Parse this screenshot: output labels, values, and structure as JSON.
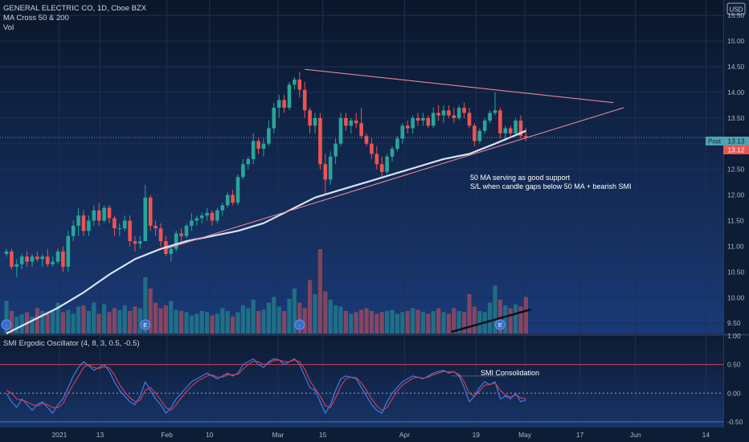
{
  "header": {
    "symbol_line": "GENERAL ELECTRIC CO, 1D, Cboe BZX",
    "indicator_ma": "MA Cross 50 & 200",
    "indicator_vol": "Vol",
    "currency": "USD"
  },
  "price_axis": {
    "ticks": [
      "15.50",
      "15.00",
      "14.50",
      "14.00",
      "13.50",
      "13.00",
      "12.50",
      "12.00",
      "11.50",
      "11.00",
      "10.50",
      "10.00",
      "9.50"
    ],
    "post_label": "Post",
    "post_value": "13.13",
    "last_value": "13.12"
  },
  "osc_axis": {
    "ticks": [
      "1.00",
      "0.50",
      "0.00",
      "-0.50"
    ]
  },
  "time_axis": {
    "labels": [
      "2021",
      "13",
      "Feb",
      "10",
      "Mar",
      "15",
      "Apr",
      "19",
      "May",
      "17",
      "Jun",
      "14"
    ]
  },
  "annotations": {
    "note_line1": "50 MA serving as good support",
    "note_line2": "S/L when candle gaps below 50 MA + bearish SMI",
    "smi_note": "SMI Consolidation"
  },
  "oscillator": {
    "title": "SMI Ergodic Oscillator (4, 8, 3, 0.5, -0.5)"
  },
  "event_markers": [
    "E",
    "E"
  ],
  "colors": {
    "background": "#0e1d36",
    "up": "#26a69a",
    "down": "#ef5350",
    "ma": "#d6e4ef",
    "trendline": "#e3879a",
    "smi_blue": "#3d7ee8",
    "smi_red": "#d23b4f",
    "overbought_line": "#c8434f",
    "oversold_line": "#2e86b8"
  },
  "chart_data": [
    {
      "type": "candlestick",
      "title": "GENERAL ELECTRIC CO, 1D, Cboe BZX",
      "ylim": [
        9.3,
        15.8
      ],
      "last_price": 13.12,
      "post_price": 13.13,
      "candles": [
        [
          10.85,
          10.95,
          10.8,
          10.9
        ],
        [
          10.9,
          10.95,
          10.55,
          10.6
        ],
        [
          10.6,
          10.75,
          10.4,
          10.65
        ],
        [
          10.65,
          10.85,
          10.55,
          10.8
        ],
        [
          10.8,
          10.9,
          10.6,
          10.7
        ],
        [
          10.7,
          10.85,
          10.6,
          10.8
        ],
        [
          10.8,
          10.9,
          10.7,
          10.75
        ],
        [
          10.75,
          10.85,
          10.6,
          10.8
        ],
        [
          10.8,
          10.95,
          10.6,
          10.65
        ],
        [
          10.65,
          10.8,
          10.6,
          10.7
        ],
        [
          10.7,
          10.95,
          10.65,
          10.9
        ],
        [
          10.9,
          11.0,
          10.5,
          10.6
        ],
        [
          10.6,
          11.3,
          10.5,
          11.2
        ],
        [
          11.2,
          11.5,
          11.1,
          11.4
        ],
        [
          11.4,
          11.75,
          11.2,
          11.6
        ],
        [
          11.6,
          11.7,
          11.2,
          11.3
        ],
        [
          11.3,
          11.6,
          11.2,
          11.5
        ],
        [
          11.5,
          11.8,
          11.4,
          11.7
        ],
        [
          11.7,
          11.85,
          11.4,
          11.5
        ],
        [
          11.5,
          11.8,
          11.45,
          11.75
        ],
        [
          11.75,
          11.8,
          11.45,
          11.55
        ],
        [
          11.55,
          11.6,
          11.2,
          11.35
        ],
        [
          11.35,
          11.45,
          11.2,
          11.35
        ],
        [
          11.35,
          11.6,
          11.3,
          11.5
        ],
        [
          11.5,
          11.6,
          11.0,
          11.1
        ],
        [
          11.1,
          11.2,
          10.9,
          11.05
        ],
        [
          11.05,
          11.2,
          10.95,
          11.1
        ],
        [
          11.1,
          12.2,
          11.1,
          11.95
        ],
        [
          11.95,
          12.0,
          11.3,
          11.4
        ],
        [
          11.4,
          11.5,
          11.2,
          11.35
        ],
        [
          11.35,
          11.45,
          11.0,
          11.1
        ],
        [
          11.1,
          11.2,
          10.8,
          10.85
        ],
        [
          10.85,
          11.0,
          10.7,
          10.95
        ],
        [
          10.95,
          11.3,
          10.9,
          11.25
        ],
        [
          11.25,
          11.35,
          11.1,
          11.2
        ],
        [
          11.2,
          11.45,
          11.15,
          11.4
        ],
        [
          11.4,
          11.65,
          11.3,
          11.5
        ],
        [
          11.5,
          11.6,
          11.4,
          11.55
        ],
        [
          11.55,
          11.65,
          11.45,
          11.6
        ],
        [
          11.6,
          11.75,
          11.5,
          11.65
        ],
        [
          11.65,
          11.7,
          11.4,
          11.5
        ],
        [
          11.5,
          11.75,
          11.45,
          11.7
        ],
        [
          11.7,
          11.85,
          11.6,
          11.8
        ],
        [
          11.8,
          12.05,
          11.75,
          12.0
        ],
        [
          12.0,
          12.1,
          11.8,
          11.85
        ],
        [
          11.85,
          12.4,
          11.8,
          12.35
        ],
        [
          12.35,
          12.7,
          12.3,
          12.6
        ],
        [
          12.6,
          12.75,
          12.5,
          12.7
        ],
        [
          12.7,
          13.2,
          12.6,
          13.05
        ],
        [
          13.05,
          13.1,
          12.8,
          12.9
        ],
        [
          12.9,
          13.1,
          12.75,
          13.0
        ],
        [
          13.0,
          13.45,
          12.95,
          13.3
        ],
        [
          13.3,
          13.8,
          13.2,
          13.7
        ],
        [
          13.7,
          13.95,
          13.5,
          13.85
        ],
        [
          13.85,
          13.95,
          13.6,
          13.7
        ],
        [
          13.7,
          14.2,
          13.65,
          14.15
        ],
        [
          14.15,
          14.3,
          14.05,
          14.25
        ],
        [
          14.25,
          14.4,
          13.9,
          14.05
        ],
        [
          14.05,
          14.2,
          13.5,
          13.65
        ],
        [
          13.65,
          13.7,
          13.2,
          13.35
        ],
        [
          13.35,
          13.6,
          13.2,
          13.5
        ],
        [
          13.5,
          13.6,
          12.5,
          12.6
        ],
        [
          12.6,
          12.8,
          12.0,
          12.3
        ],
        [
          12.3,
          12.85,
          12.2,
          12.75
        ],
        [
          12.75,
          13.1,
          12.6,
          13.0
        ],
        [
          13.0,
          13.6,
          12.95,
          13.5
        ],
        [
          13.5,
          13.6,
          13.25,
          13.35
        ],
        [
          13.35,
          13.5,
          13.2,
          13.45
        ],
        [
          13.45,
          13.6,
          13.3,
          13.4
        ],
        [
          13.4,
          13.7,
          13.1,
          13.15
        ],
        [
          13.15,
          13.2,
          12.95,
          13.0
        ],
        [
          13.0,
          13.1,
          12.7,
          12.8
        ],
        [
          12.8,
          12.95,
          12.5,
          12.6
        ],
        [
          12.6,
          12.75,
          12.35,
          12.45
        ],
        [
          12.45,
          12.8,
          12.4,
          12.75
        ],
        [
          12.75,
          12.95,
          12.65,
          12.9
        ],
        [
          12.9,
          13.15,
          12.85,
          13.1
        ],
        [
          13.1,
          13.4,
          13.0,
          13.35
        ],
        [
          13.35,
          13.45,
          13.2,
          13.3
        ],
        [
          13.3,
          13.55,
          13.2,
          13.5
        ],
        [
          13.5,
          13.6,
          13.35,
          13.45
        ],
        [
          13.45,
          13.6,
          13.35,
          13.5
        ],
        [
          13.5,
          13.55,
          13.3,
          13.35
        ],
        [
          13.35,
          13.7,
          13.3,
          13.6
        ],
        [
          13.6,
          13.75,
          13.45,
          13.55
        ],
        [
          13.55,
          13.75,
          13.4,
          13.65
        ],
        [
          13.65,
          13.75,
          13.5,
          13.55
        ],
        [
          13.55,
          13.7,
          13.4,
          13.5
        ],
        [
          13.5,
          13.75,
          13.45,
          13.7
        ],
        [
          13.7,
          13.8,
          13.5,
          13.6
        ],
        [
          13.6,
          13.7,
          13.3,
          13.35
        ],
        [
          13.35,
          13.4,
          12.95,
          13.05
        ],
        [
          13.05,
          13.3,
          13.0,
          13.25
        ],
        [
          13.25,
          13.5,
          13.2,
          13.45
        ],
        [
          13.45,
          13.65,
          13.4,
          13.6
        ],
        [
          13.6,
          14.0,
          13.55,
          13.65
        ],
        [
          13.65,
          13.7,
          13.1,
          13.2
        ],
        [
          13.2,
          13.35,
          13.05,
          13.3
        ],
        [
          13.3,
          13.35,
          13.15,
          13.2
        ],
        [
          13.2,
          13.5,
          13.15,
          13.45
        ],
        [
          13.45,
          13.55,
          13.1,
          13.15
        ],
        [
          13.15,
          13.3,
          13.05,
          13.12
        ]
      ],
      "volume": [
        58,
        40,
        30,
        34,
        38,
        30,
        45,
        40,
        35,
        40,
        55,
        38,
        42,
        35,
        48,
        50,
        40,
        55,
        35,
        52,
        38,
        45,
        42,
        50,
        40,
        48,
        45,
        100,
        80,
        55,
        45,
        50,
        58,
        42,
        40,
        38,
        32,
        35,
        40,
        38,
        32,
        35,
        45,
        40,
        30,
        38,
        50,
        45,
        60,
        40,
        42,
        55,
        65,
        48,
        40,
        62,
        80,
        55,
        45,
        95,
        70,
        150,
        75,
        60,
        50,
        48,
        40,
        35,
        38,
        42,
        45,
        40,
        35,
        38,
        40,
        42,
        35,
        38,
        40,
        45,
        42,
        38,
        35,
        40,
        45,
        38,
        35,
        45,
        40,
        38,
        70,
        48,
        40,
        38,
        55,
        85,
        60,
        50,
        45,
        52,
        48,
        65
      ],
      "ma50": [
        [
          0,
          9.3
        ],
        [
          5,
          9.55
        ],
        [
          10,
          9.8
        ],
        [
          15,
          10.1
        ],
        [
          20,
          10.45
        ],
        [
          25,
          10.75
        ],
        [
          30,
          10.95
        ],
        [
          35,
          11.1
        ],
        [
          40,
          11.2
        ],
        [
          45,
          11.3
        ],
        [
          50,
          11.45
        ],
        [
          55,
          11.7
        ],
        [
          60,
          11.95
        ],
        [
          65,
          12.1
        ],
        [
          70,
          12.25
        ],
        [
          75,
          12.4
        ],
        [
          80,
          12.55
        ],
        [
          85,
          12.7
        ],
        [
          90,
          12.8
        ],
        [
          95,
          13.0
        ],
        [
          101,
          13.25
        ]
      ],
      "trendlines": {
        "upper": [
          [
            58,
            14.45
          ],
          [
            118,
            13.8
          ]
        ],
        "lower": [
          [
            31,
            10.95
          ],
          [
            120,
            13.7
          ]
        ]
      },
      "annotations": [
        "50 MA serving as good support",
        "S/L when candle gaps below 50 MA + bearish SMI"
      ]
    },
    {
      "type": "line",
      "title": "SMI Ergodic Oscillator (4, 8, 3, 0.5, -0.5)",
      "ylim": [
        -0.6,
        1.0
      ],
      "levels": [
        0.5,
        0.0,
        -0.5
      ],
      "series": [
        {
          "values": [
            0.0,
            -0.15,
            -0.25,
            -0.1,
            -0.2,
            -0.3,
            -0.2,
            -0.15,
            -0.25,
            -0.35,
            -0.2,
            -0.1,
            0.1,
            0.3,
            0.45,
            0.55,
            0.48,
            0.4,
            0.45,
            0.5,
            0.38,
            0.2,
            0.05,
            -0.05,
            -0.15,
            -0.2,
            -0.05,
            0.2,
            0.05,
            -0.1,
            -0.2,
            -0.35,
            -0.25,
            -0.1,
            0.0,
            0.1,
            0.2,
            0.25,
            0.3,
            0.35,
            0.3,
            0.25,
            0.3,
            0.35,
            0.3,
            0.35,
            0.5,
            0.55,
            0.6,
            0.5,
            0.45,
            0.55,
            0.6,
            0.58,
            0.5,
            0.55,
            0.6,
            0.5,
            0.3,
            0.1,
            0.05,
            -0.15,
            -0.35,
            -0.2,
            0.05,
            0.25,
            0.3,
            0.28,
            0.25,
            0.1,
            -0.05,
            -0.2,
            -0.3,
            -0.35,
            -0.15,
            0.0,
            0.1,
            0.2,
            0.25,
            0.3,
            0.28,
            0.25,
            0.3,
            0.35,
            0.38,
            0.4,
            0.35,
            0.38,
            0.3,
            0.1,
            -0.15,
            -0.05,
            0.1,
            0.2,
            0.15,
            0.2,
            -0.1,
            -0.05,
            -0.1,
            0.0,
            -0.15,
            -0.12
          ]
        },
        {
          "values": [
            0.05,
            0.0,
            -0.1,
            -0.12,
            -0.15,
            -0.2,
            -0.22,
            -0.18,
            -0.2,
            -0.25,
            -0.25,
            -0.18,
            0.0,
            0.15,
            0.3,
            0.45,
            0.5,
            0.45,
            0.43,
            0.46,
            0.44,
            0.32,
            0.15,
            0.02,
            -0.08,
            -0.15,
            -0.12,
            0.05,
            0.1,
            0.0,
            -0.12,
            -0.25,
            -0.3,
            -0.2,
            -0.08,
            0.03,
            0.12,
            0.2,
            0.25,
            0.3,
            0.32,
            0.28,
            0.28,
            0.32,
            0.32,
            0.33,
            0.42,
            0.5,
            0.56,
            0.55,
            0.5,
            0.52,
            0.57,
            0.58,
            0.55,
            0.55,
            0.58,
            0.55,
            0.42,
            0.22,
            0.08,
            -0.05,
            -0.22,
            -0.25,
            -0.08,
            0.12,
            0.25,
            0.28,
            0.27,
            0.18,
            0.05,
            -0.1,
            -0.22,
            -0.3,
            -0.25,
            -0.1,
            0.04,
            0.14,
            0.2,
            0.26,
            0.28,
            0.26,
            0.28,
            0.32,
            0.35,
            0.38,
            0.37,
            0.37,
            0.33,
            0.2,
            0.0,
            -0.05,
            0.04,
            0.14,
            0.15,
            0.18,
            0.05,
            -0.03,
            -0.07,
            -0.03,
            -0.08,
            -0.1
          ]
        }
      ],
      "annotation": "SMI Consolidation"
    }
  ]
}
